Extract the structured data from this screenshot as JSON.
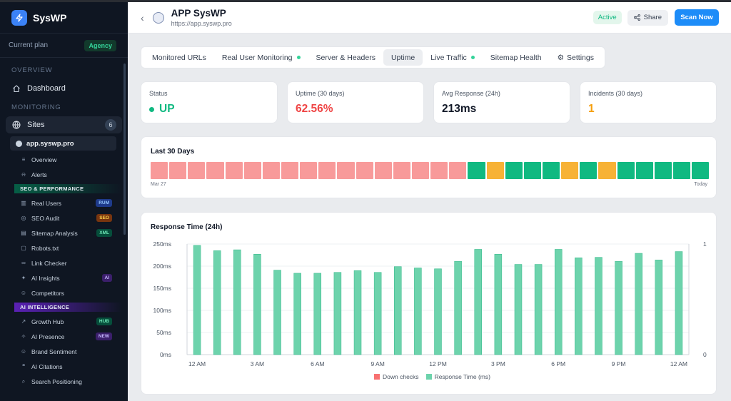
{
  "brand": {
    "name": "SysWP"
  },
  "plan": {
    "label": "Current plan",
    "badge": "Agency"
  },
  "sidebar": {
    "overview_title": "OVERVIEW",
    "dashboard": "Dashboard",
    "monitoring_title": "MONITORING",
    "sites": "Sites",
    "sites_count": "6",
    "site_name": "app.syswp.pro",
    "sub_items": [
      {
        "label": "Overview",
        "icon": "list-icon"
      },
      {
        "label": "Alerts",
        "icon": "bell-icon"
      }
    ],
    "seo_group": "SEO & PERFORMANCE",
    "seo_items": [
      {
        "label": "Real Users",
        "tag": "RUM",
        "tag_bg": "#1e3a8a",
        "tag_fg": "#93c5fd"
      },
      {
        "label": "SEO Audit",
        "tag": "SEO",
        "tag_bg": "#78350f",
        "tag_fg": "#fcd34d"
      },
      {
        "label": "Sitemap Analysis",
        "tag": "XML",
        "tag_bg": "#064e3b",
        "tag_fg": "#6ee7b7"
      },
      {
        "label": "Robots.txt",
        "tag": ""
      },
      {
        "label": "Link Checker",
        "tag": ""
      },
      {
        "label": "AI Insights",
        "tag": "AI",
        "tag_bg": "#3b1f6b",
        "tag_fg": "#c4b5fd"
      },
      {
        "label": "Competitors",
        "tag": ""
      }
    ],
    "ai_group": "AI INTELLIGENCE",
    "ai_items": [
      {
        "label": "Growth Hub",
        "tag": "HUB",
        "tag_bg": "#064e3b",
        "tag_fg": "#6ee7b7"
      },
      {
        "label": "AI Presence",
        "tag": "NEW",
        "tag_bg": "#3b1f6b",
        "tag_fg": "#c4b5fd"
      },
      {
        "label": "Brand Sentiment",
        "tag": ""
      },
      {
        "label": "AI Citations",
        "tag": ""
      },
      {
        "label": "Search Positioning",
        "tag": ""
      }
    ]
  },
  "header": {
    "title": "APP SysWP",
    "url": "https://app.syswp.pro",
    "status": "Active",
    "share": "Share",
    "scan": "Scan Now"
  },
  "tabs": [
    {
      "label": "Monitored URLs",
      "live": false,
      "active": false
    },
    {
      "label": "Real User Monitoring",
      "live": true,
      "active": false
    },
    {
      "label": "Server & Headers",
      "live": false,
      "active": false
    },
    {
      "label": "Uptime",
      "live": false,
      "active": true
    },
    {
      "label": "Live Traffic",
      "live": true,
      "active": false
    },
    {
      "label": "Sitemap Health",
      "live": false,
      "active": false
    },
    {
      "label": "Settings",
      "live": false,
      "active": false,
      "icon": "gear-icon"
    }
  ],
  "stats": [
    {
      "label": "Status",
      "value": "UP",
      "color": "#10b981"
    },
    {
      "label": "Uptime (30 days)",
      "value": "62.56%",
      "color": "#ef4444"
    },
    {
      "label": "Avg Response (24h)",
      "value": "213ms",
      "color": "#111827"
    },
    {
      "label": "Incidents (30 days)",
      "value": "1",
      "color": "#f59e0b"
    }
  ],
  "last30": {
    "title": "Last 30 Days",
    "start_label": "Mar 27",
    "end_label": "Today",
    "days": [
      "down",
      "down",
      "down",
      "down",
      "down",
      "down",
      "down",
      "down",
      "down",
      "down",
      "down",
      "down",
      "down",
      "down",
      "down",
      "down",
      "down",
      "up",
      "partial",
      "up",
      "up",
      "up",
      "partial",
      "up",
      "partial",
      "up",
      "up",
      "up",
      "up",
      "up"
    ],
    "colors": {
      "down": "#f89a9a",
      "up": "#10b981",
      "partial": "#f7b236"
    }
  },
  "chart_data": {
    "type": "bar",
    "title": "Response Time (24h)",
    "ylim": [
      0,
      250
    ],
    "y_ticks": [
      "0ms",
      "50ms",
      "100ms",
      "150ms",
      "200ms",
      "250ms"
    ],
    "y2_ticks": [
      "0",
      "1"
    ],
    "x_tick_labels": [
      "12 AM",
      "3 AM",
      "6 AM",
      "9 AM",
      "12 PM",
      "3 PM",
      "6 PM",
      "9 PM",
      "12 AM"
    ],
    "series": [
      {
        "name": "Down checks",
        "color": "#f87171",
        "values": [
          0,
          0,
          0,
          0,
          0,
          0,
          0,
          0,
          0,
          0,
          0,
          0,
          0,
          0,
          0,
          0,
          0,
          0,
          0,
          0,
          0,
          0,
          0,
          0,
          0
        ]
      },
      {
        "name": "Response Time (ms)",
        "color": "#6dd3ac",
        "values": [
          247,
          235,
          237,
          227,
          191,
          184,
          184,
          186,
          190,
          186,
          199,
          196,
          194,
          211,
          238,
          227,
          204,
          204,
          238,
          219,
          220,
          211,
          229,
          214,
          233
        ]
      }
    ]
  }
}
